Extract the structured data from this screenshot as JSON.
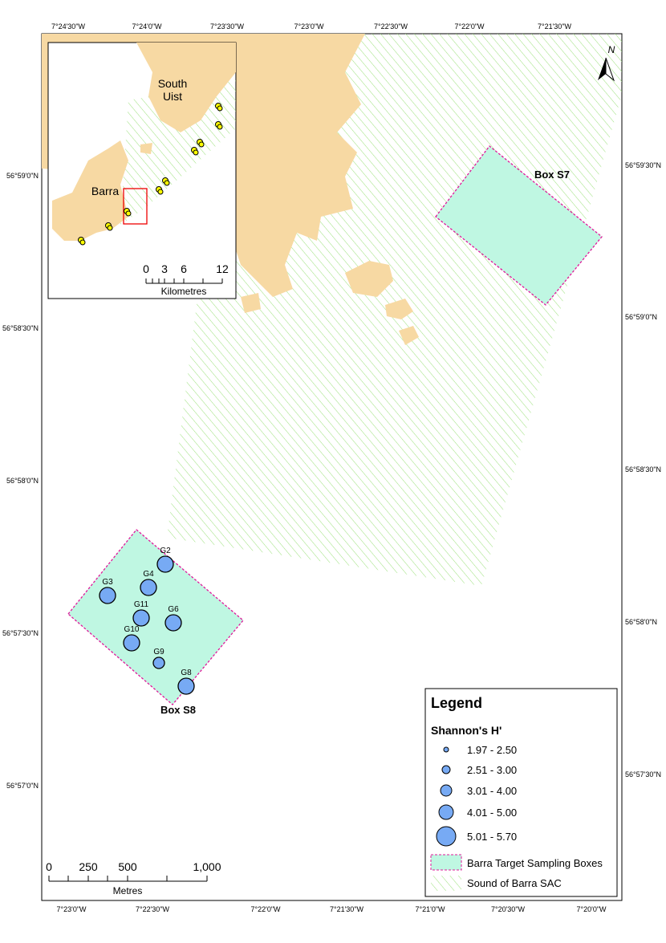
{
  "map": {
    "top_labels": [
      "7°24'30\"W",
      "7°24'0\"W",
      "7°23'30\"W",
      "7°23'0\"W",
      "7°22'30\"W",
      "7°22'0\"W",
      "7°21'30\"W"
    ],
    "bottom_labels": [
      "7°23'0\"W",
      "7°22'30\"W",
      "7°22'0\"W",
      "7°21'30\"W",
      "7°21'0\"W",
      "7°20'30\"W",
      "7°20'0\"W"
    ],
    "left_labels": [
      "56°59'0\"N",
      "56°58'30\"N",
      "56°58'0\"N",
      "56°57'30\"N",
      "56°57'0\"N"
    ],
    "right_labels": [
      "56°59'30\"N",
      "56°59'0\"N",
      "56°58'30\"N",
      "56°58'0\"N",
      "56°57'30\"N"
    ],
    "north": "N",
    "boxes": [
      "Box S7",
      "Box S8"
    ],
    "samples": [
      "G2",
      "G3",
      "G4",
      "G11",
      "G6",
      "G10",
      "G9",
      "G8"
    ],
    "inset": {
      "places": [
        "South Uist",
        "Barra"
      ],
      "scale_ticks": [
        "0",
        "3",
        "6",
        "12"
      ],
      "scale_unit": "Kilometres"
    },
    "scale": {
      "ticks": [
        "0",
        "250",
        "500",
        "1,000"
      ],
      "unit": "Metres"
    },
    "legend": {
      "title": "Legend",
      "subtitle": "Shannon's H'",
      "classes": [
        "1.97 - 2.50",
        "2.51 - 3.00",
        "3.01 - 4.00",
        "4.01 - 5.00",
        "5.01 - 5.70"
      ],
      "items": [
        "Barra Target Sampling Boxes",
        "Sound of Barra SAC"
      ]
    }
  }
}
